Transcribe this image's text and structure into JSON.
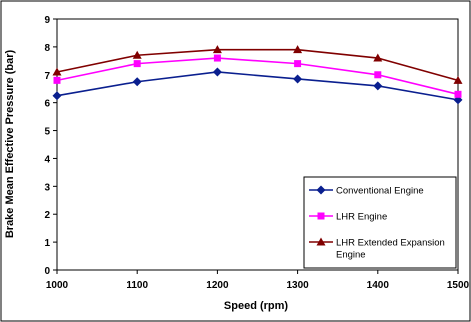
{
  "chart_data": {
    "type": "line",
    "title": "",
    "xlabel": "Speed (rpm)",
    "ylabel": "Brake Mean Effective Pressure (bar)",
    "x": [
      1000,
      1100,
      1200,
      1300,
      1400,
      1500
    ],
    "xlim": [
      1000,
      1500
    ],
    "ylim": [
      0,
      9
    ],
    "x_ticks": [
      "1000",
      "1100",
      "1200",
      "1300",
      "1400",
      "1500"
    ],
    "y_ticks": [
      "0",
      "1",
      "2",
      "3",
      "4",
      "5",
      "6",
      "7",
      "8",
      "9"
    ],
    "grid": false,
    "legend_position": "bottom-right",
    "series": [
      {
        "name": "Conventional Engine",
        "values": [
          6.25,
          6.75,
          7.1,
          6.85,
          6.6,
          6.1
        ],
        "color": "#0a1f8f",
        "marker": "diamond"
      },
      {
        "name": "LHR Engine",
        "values": [
          6.8,
          7.4,
          7.6,
          7.4,
          7.0,
          6.3
        ],
        "color": "#ff00ff",
        "marker": "square"
      },
      {
        "name": "LHR Extended Expansion Engine",
        "values": [
          7.1,
          7.7,
          7.9,
          7.9,
          7.6,
          6.8
        ],
        "color": "#800000",
        "marker": "triangle"
      }
    ]
  }
}
